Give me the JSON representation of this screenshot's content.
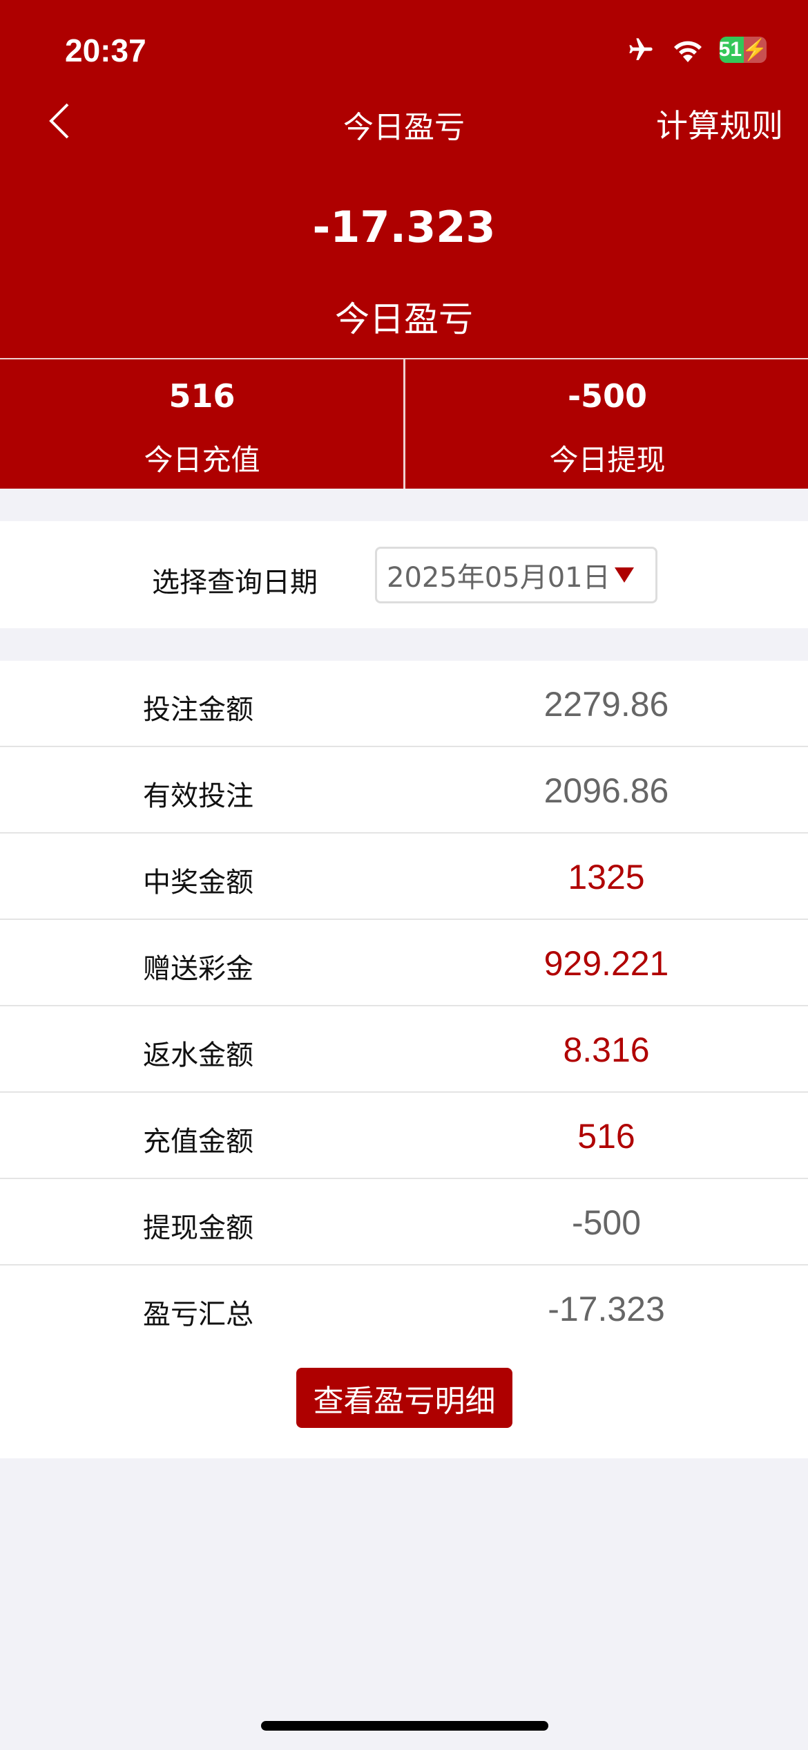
{
  "status_bar": {
    "time": "20:37",
    "battery": "51",
    "icons": [
      "airplane-icon",
      "wifi-icon",
      "battery-charging-icon"
    ]
  },
  "nav": {
    "title": "今日盈亏",
    "rules": "计算规则",
    "back_icon": "chevron-left-icon"
  },
  "summary": {
    "value": "-17.323",
    "label": "今日盈亏"
  },
  "stats": [
    {
      "value": "516",
      "label": "今日充值"
    },
    {
      "value": "-500",
      "label": "今日提现"
    }
  ],
  "date": {
    "label": "选择查询日期",
    "value": "2025年05月01日"
  },
  "rows": [
    {
      "label": "投注金额",
      "value": "2279.86",
      "color": "gray"
    },
    {
      "label": "有效投注",
      "value": "2096.86",
      "color": "gray"
    },
    {
      "label": "中奖金额",
      "value": "1325",
      "color": "red"
    },
    {
      "label": "赠送彩金",
      "value": "929.221",
      "color": "red"
    },
    {
      "label": "返水金额",
      "value": "8.316",
      "color": "red"
    },
    {
      "label": "充值金额",
      "value": "516",
      "color": "red"
    },
    {
      "label": "提现金额",
      "value": "-500",
      "color": "gray"
    },
    {
      "label": "盈亏汇总",
      "value": "-17.323",
      "color": "gray"
    }
  ],
  "detail_button": "查看盈亏明细",
  "colors": {
    "brand": "#ae0000",
    "background": "#f2f2f7",
    "value_gray": "#666666",
    "value_red": "#b00000"
  }
}
